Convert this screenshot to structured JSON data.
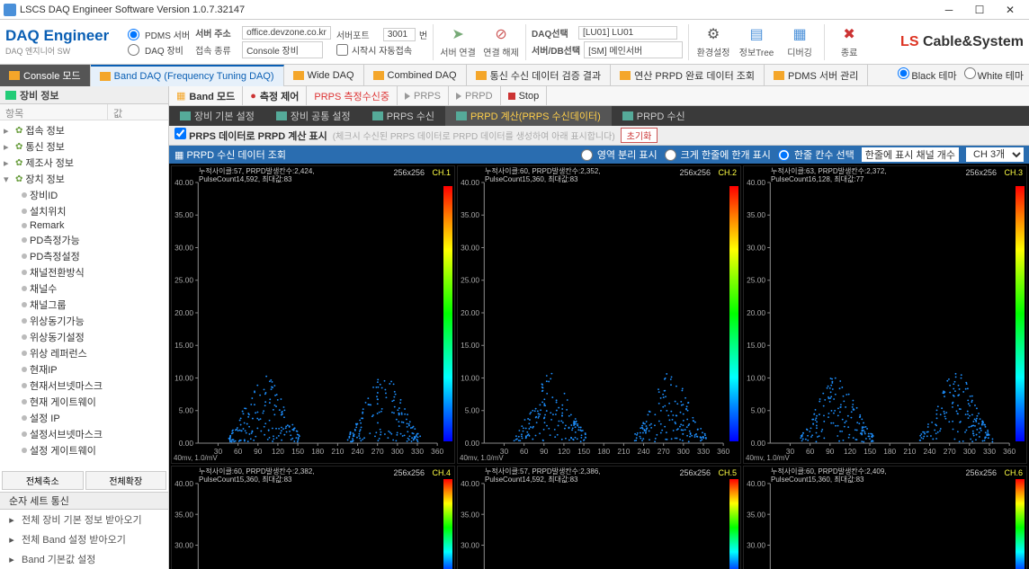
{
  "window": {
    "title": "LSCS DAQ Engineer Software Version 1.0.7.32147"
  },
  "brand": {
    "title": "DAQ Engineer",
    "subtitle": "DAQ 엔지니어 SW"
  },
  "ribbon": {
    "radio_pdms": "PDMS 서버",
    "radio_daq": "DAQ 장비",
    "addr_label": "서버 주소",
    "addr_value": "office.devzone.co.kr",
    "type_label": "접속 종류",
    "type_value": "Console 장비",
    "port_label": "서버포트",
    "port_value": "3001",
    "port_unit": "번",
    "auto_label": "시작시 자동접속",
    "btn_connect": "서버 연결",
    "btn_disconnect": "연결 해제",
    "daq_sel_label": "DAQ선택",
    "daq_sel_value": "[LU01] LU01",
    "db_sel_label": "서버/DB선택",
    "db_sel_value": "[SM] 메인서버",
    "btn_env": "환경설정",
    "btn_tree": "정보Tree",
    "btn_debug": "디버깅",
    "btn_exit": "종료"
  },
  "logo": {
    "pre": "LS",
    "post": " Cable&System"
  },
  "modetabs": [
    {
      "label": "Console 모드",
      "dark": true
    },
    {
      "label": "Band DAQ (Frequency Tuning DAQ)",
      "active": true
    },
    {
      "label": "Wide DAQ"
    },
    {
      "label": "Combined DAQ"
    },
    {
      "label": "통신 수신 데이터 검증 결과"
    },
    {
      "label": "연산 PRPD 완료 데이터 조회"
    },
    {
      "label": "PDMS 서버 관리"
    }
  ],
  "theme": {
    "black": "Black 테마",
    "white": "White 테마"
  },
  "sidebar": {
    "title": "장비 정보",
    "col1": "항목",
    "col2": "값",
    "groups": [
      {
        "label": "접속 정보",
        "children": []
      },
      {
        "label": "통신 정보",
        "children": []
      },
      {
        "label": "제조사 정보",
        "children": []
      },
      {
        "label": "장치 정보",
        "children": [
          "장비ID",
          "설치위치",
          "Remark",
          "PD측정가능",
          "PD측정설정",
          "채널전환방식",
          "채널수",
          "채널그룹",
          "위상동기가능",
          "위상동기설정",
          "위상 레퍼런스",
          "현재IP",
          "현재서브넷마스크",
          "현재 게이트웨이",
          "설정 IP",
          "설정서브넷마스크",
          "설정 게이트웨이"
        ]
      }
    ],
    "btn_collapse": "전체축소",
    "btn_expand": "전체확장",
    "sec2_title": "순자 세트 통신",
    "rows": [
      "전체 장비 기본 정보 받아오기",
      "전체 Band 설정 받아오기",
      "Band 기본값 설정"
    ]
  },
  "ctlbar": [
    {
      "label": "Band 모드",
      "kind": "h"
    },
    {
      "label": "측정 제어",
      "kind": "rec"
    },
    {
      "label": "PRPS 측정수신중",
      "kind": "status"
    },
    {
      "label": "PRPS",
      "kind": "play"
    },
    {
      "label": "PRPD",
      "kind": "play"
    },
    {
      "label": "Stop",
      "kind": "stop"
    }
  ],
  "subtabs": [
    {
      "label": "장비 기본 설정"
    },
    {
      "label": "장비 공통 설정"
    },
    {
      "label": "PRPS 수신"
    },
    {
      "label": "PRPD 계산(PRPS 수신데이터)",
      "active": true
    },
    {
      "label": "PRPD 수신"
    }
  ],
  "optbar": {
    "check": "PRPS 데이터로 PRPD 계산 표시",
    "note": "(체크시 수신된 PRPS 데이터로 PRPD 데이터를 생성하여 아래 표시합니다)",
    "init": "초기화"
  },
  "panelhead": {
    "title": "PRPD 수신 데이터 조회",
    "r1": "영역 분리 표시",
    "r2": "크게 한줄에 한개 표시",
    "r3": "한줄 칸수 선택",
    "count_label": "한줄에 표시 채널 개수",
    "count_value": "CH 3개"
  },
  "charts": {
    "ylabels": [
      "40.00",
      "35.00",
      "30.00",
      "25.00",
      "20.00",
      "15.00",
      "10.00",
      "5.00",
      "0.00"
    ],
    "xlabels": [
      "30",
      "60",
      "90",
      "120",
      "150",
      "180",
      "210",
      "240",
      "270",
      "300",
      "330",
      "360"
    ],
    "res": "256x256",
    "foot": "40mv, 1.0/mV",
    "ylabels_short": [
      "40.00",
      "35.00",
      "30.00",
      "25.00"
    ],
    "list": [
      {
        "ch": "CH.1",
        "info1": "누적사이클:57, PRPD발생칸수:2,424,",
        "info2": "PulseCount14,592, 최대값:83"
      },
      {
        "ch": "CH.2",
        "info1": "누적사이클:60, PRPD발생칸수:2,352,",
        "info2": "PulseCount15,360, 최대값:83"
      },
      {
        "ch": "CH.3",
        "info1": "누적사이클:63, PRPD발생칸수:2,372,",
        "info2": "PulseCount16,128, 최대값:77"
      },
      {
        "ch": "CH.4",
        "info1": "누적사이클:60, PRPD발생칸수:2,382,",
        "info2": "PulseCount15,360, 최대값:83"
      },
      {
        "ch": "CH.5",
        "info1": "누적사이클:57, PRPD발생칸수:2,386,",
        "info2": "PulseCount14,592, 최대값:83"
      },
      {
        "ch": "CH.6",
        "info1": "누적사이클:60, PRPD발생칸수:2,409,",
        "info2": "PulseCount15,360, 최대값:83"
      }
    ],
    "cluster": {
      "centers": [
        100,
        280
      ],
      "spread": 55,
      "peak": 10,
      "n": 160,
      "color": "#1ea0ff"
    }
  }
}
